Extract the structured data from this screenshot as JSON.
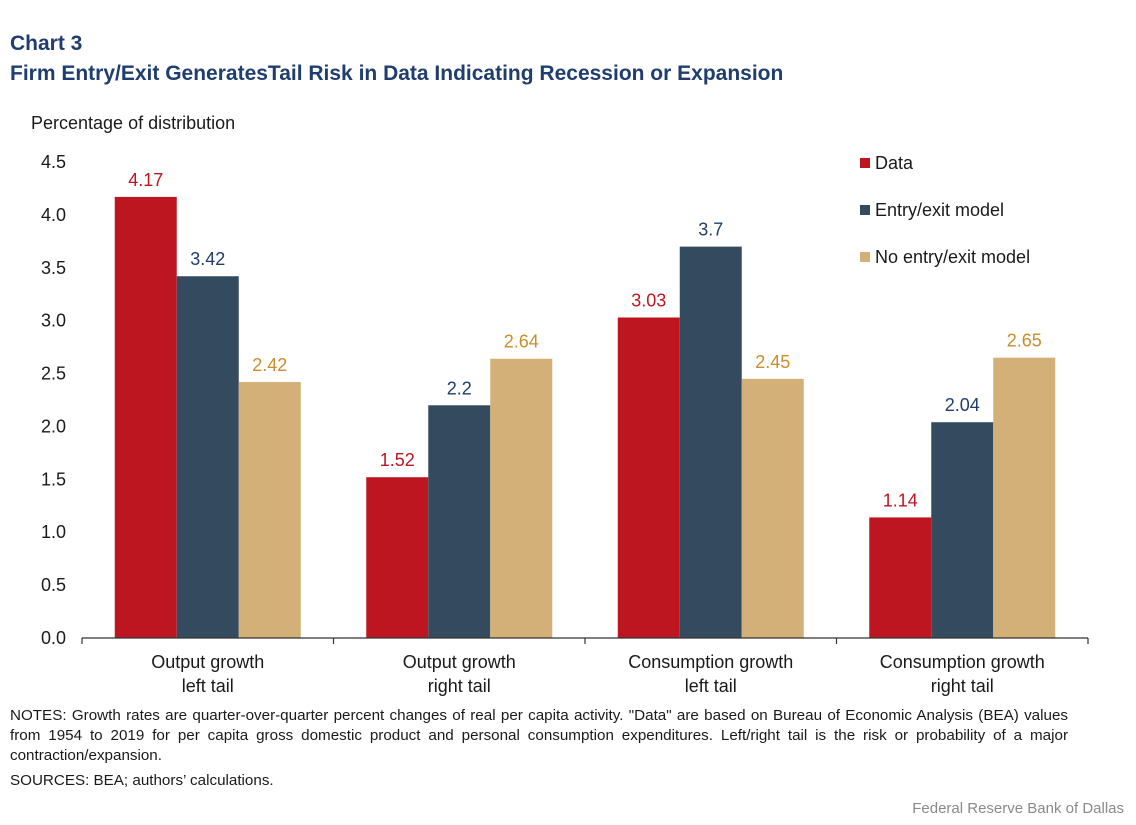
{
  "header": {
    "chart_number": "Chart 3",
    "title": "Firm Entry/Exit GeneratesTail Risk in Data Indicating Recession or Expansion"
  },
  "chart_data": {
    "type": "bar",
    "title": "Firm Entry/Exit GeneratesTail Risk in Data Indicating Recession or Expansion",
    "ylabel": "Percentage of distribution",
    "xlabel": "",
    "ylim": [
      0,
      4.5
    ],
    "yticks": [
      "0.0",
      "0.5",
      "1.0",
      "1.5",
      "2.0",
      "2.5",
      "3.0",
      "3.5",
      "4.0",
      "4.5"
    ],
    "categories": [
      [
        "Output growth",
        "left tail"
      ],
      [
        "Output growth",
        "right tail"
      ],
      [
        "Consumption growth",
        "left tail"
      ],
      [
        "Consumption growth",
        "right tail"
      ]
    ],
    "legend_position": "top-right",
    "series": [
      {
        "name": "Data",
        "color": "#be1620",
        "label_color": "#be1620",
        "values": [
          4.17,
          1.52,
          3.03,
          1.14
        ],
        "labels": [
          "4.17",
          "1.52",
          "3.03",
          "1.14"
        ]
      },
      {
        "name": "Entry/exit model",
        "color": "#344a5f",
        "label_color": "#1f3d6e",
        "values": [
          3.42,
          2.2,
          3.7,
          2.04
        ],
        "labels": [
          "3.42",
          "2.2",
          "3.7",
          "2.04"
        ]
      },
      {
        "name": "No entry/exit model",
        "color": "#d4b079",
        "label_color": "#c98e2b",
        "values": [
          2.42,
          2.64,
          2.45,
          2.65
        ],
        "labels": [
          "2.42",
          "2.64",
          "2.45",
          "2.65"
        ]
      }
    ]
  },
  "footer": {
    "notes": "NOTES: Growth rates are quarter-over-quarter percent changes of real per capita activity. \"Data\" are based on Bureau of Economic Analysis (BEA) values from 1954 to 2019 for per capita gross domestic product and personal consumption expenditures. Left/right tail is the risk or probability of a major contraction/expansion.",
    "sources": "SOURCES: BEA; authors’ calculations.",
    "credit": "Federal Reserve  Bank of Dallas"
  }
}
